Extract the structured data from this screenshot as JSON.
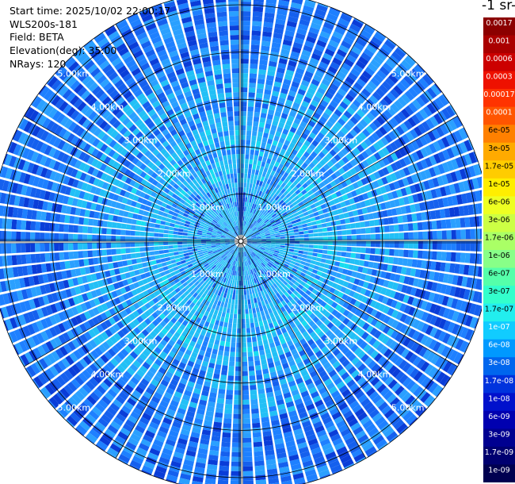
{
  "header": {
    "start_time": "Start time: 2025/10/02 22:00:17",
    "instrument": "WLS200s-181",
    "field": "Field: BETA",
    "elevation": "Elevation(deg): 35.00",
    "nrays": "NRays: 120"
  },
  "colorbar": {
    "title": "-1 sr-",
    "labels": [
      "0.0017",
      "0.001",
      "0.0006",
      "0.0003",
      "0.00017",
      "0.0001",
      "6e-05",
      "3e-05",
      "1.7e-05",
      "1e-05",
      "6e-06",
      "3e-06",
      "1.7e-06",
      "1e-06",
      "6e-07",
      "3e-07",
      "1.7e-07",
      "1e-07",
      "6e-08",
      "3e-08",
      "1.7e-08",
      "1e-08",
      "6e-09",
      "3e-09",
      "1.7e-09",
      "1e-09"
    ],
    "colors": [
      "#8b0000",
      "#aa0000",
      "#cc0000",
      "#ee1100",
      "#ff3300",
      "#ff5500",
      "#ff8000",
      "#ffaa00",
      "#ffcc00",
      "#ffee00",
      "#eeff22",
      "#ccff44",
      "#aaff66",
      "#88ff88",
      "#55ffaa",
      "#33ffcc",
      "#22eeee",
      "#11ccff",
      "#0099ff",
      "#0066ee",
      "#0033dd",
      "#0011cc",
      "#0000b0",
      "#000090",
      "#000070",
      "#000050"
    ]
  },
  "chart_data": {
    "type": "heatmap",
    "subtype": "polar-ppi",
    "field": "BETA",
    "elevation_deg": 35.0,
    "nrays": 120,
    "range_rings_km": [
      1,
      2,
      3,
      4,
      5
    ],
    "ring_labels": [
      "1.00km",
      "2.00km",
      "3.00km",
      "4.00km",
      "5.00km"
    ],
    "max_range_km": 5.3,
    "color_scale": "log",
    "value_range": [
      1e-09,
      0.0017
    ],
    "dominant_values": {
      "near_range": "1e-07",
      "mid_range": "1.7e-07",
      "far_range": "3e-08",
      "center_north": "1e-08"
    }
  }
}
